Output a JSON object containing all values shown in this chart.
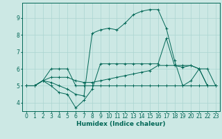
{
  "xlabel": "Humidex (Indice chaleur)",
  "background_color": "#cce8e4",
  "grid_color": "#aad4d0",
  "line_color": "#006655",
  "xlim": [
    -0.5,
    23.5
  ],
  "ylim": [
    3.5,
    9.9
  ],
  "xticks": [
    0,
    1,
    2,
    3,
    4,
    5,
    6,
    7,
    8,
    9,
    10,
    11,
    12,
    13,
    14,
    15,
    16,
    17,
    18,
    19,
    20,
    21,
    22,
    23
  ],
  "yticks": [
    4,
    5,
    6,
    7,
    8,
    9
  ],
  "series": [
    [
      5.0,
      5.0,
      5.3,
      6.0,
      6.0,
      6.0,
      5.0,
      5.0,
      5.0,
      5.0,
      5.0,
      5.0,
      5.0,
      5.0,
      5.0,
      5.0,
      5.0,
      5.0,
      5.0,
      5.0,
      5.0,
      5.0,
      5.0,
      5.0
    ],
    [
      5.0,
      5.0,
      5.3,
      5.0,
      4.6,
      4.5,
      3.7,
      4.15,
      4.8,
      6.3,
      6.3,
      6.3,
      6.3,
      6.3,
      6.3,
      6.3,
      6.3,
      7.8,
      6.2,
      6.1,
      6.2,
      6.0,
      5.0,
      5.0
    ],
    [
      5.0,
      5.0,
      5.3,
      5.5,
      5.5,
      5.5,
      5.3,
      5.2,
      5.2,
      5.3,
      5.4,
      5.5,
      5.6,
      5.7,
      5.8,
      5.9,
      6.2,
      6.2,
      6.2,
      6.2,
      6.2,
      6.0,
      5.0,
      5.0
    ],
    [
      5.0,
      5.0,
      5.3,
      5.2,
      5.0,
      4.8,
      4.5,
      4.4,
      8.1,
      8.3,
      8.4,
      8.3,
      8.7,
      9.2,
      9.4,
      9.5,
      9.5,
      8.4,
      6.5,
      5.0,
      5.3,
      6.0,
      6.0,
      5.0
    ]
  ]
}
